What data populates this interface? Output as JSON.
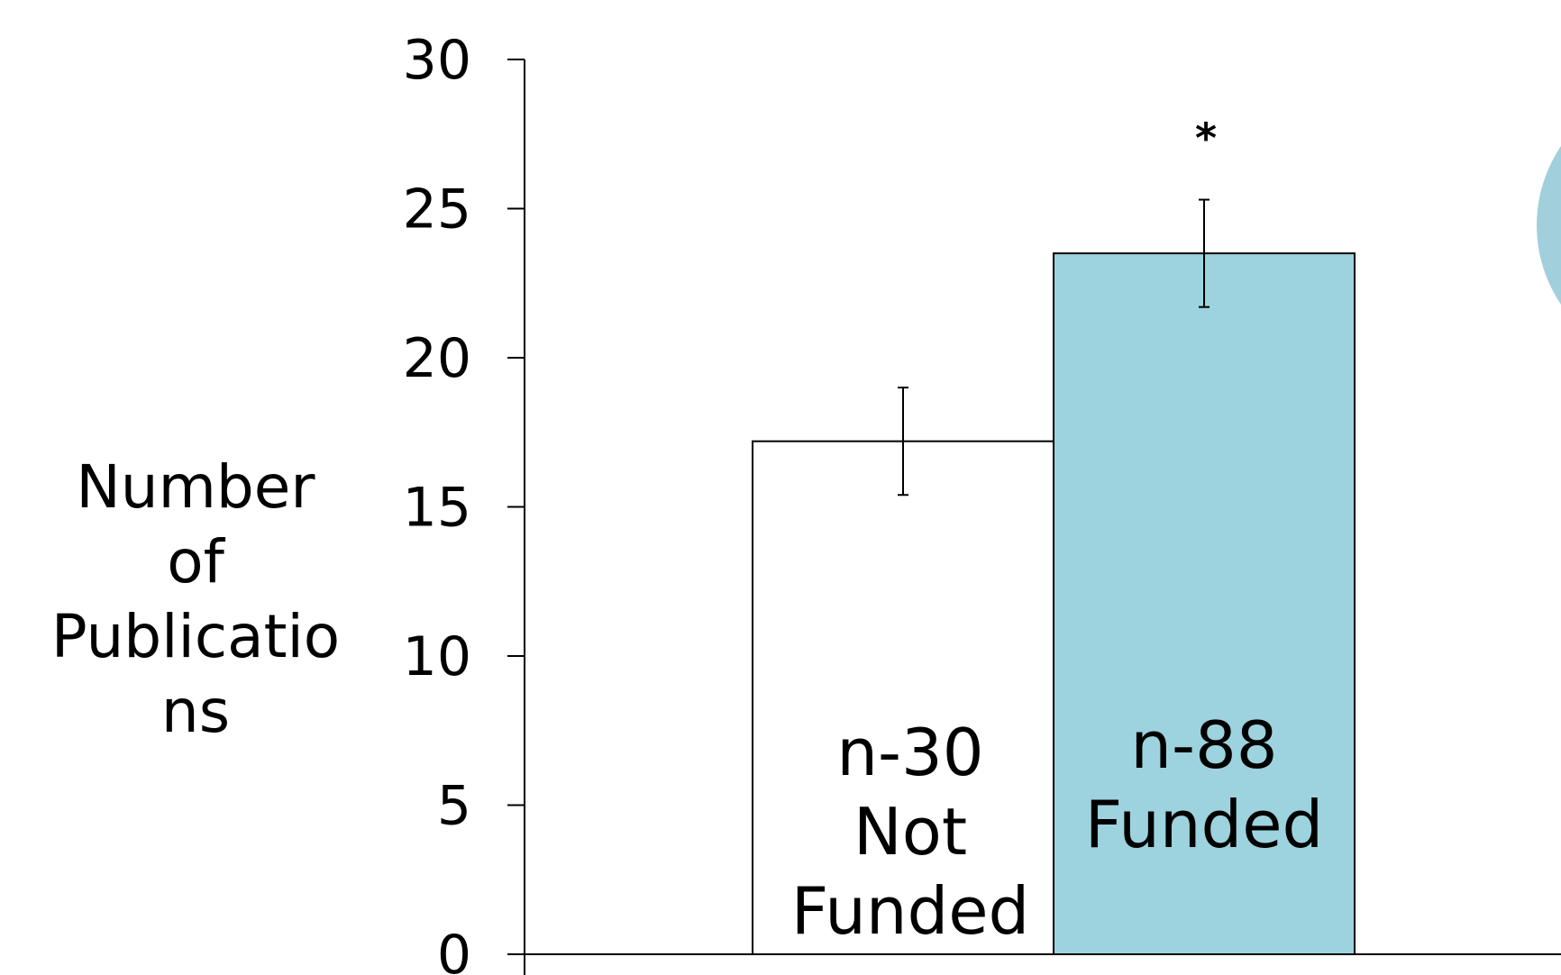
{
  "chart_data": {
    "type": "bar",
    "ylabel": "Number of Publications",
    "ylabel_lines": [
      "Number",
      "of",
      "Publicatio",
      "ns"
    ],
    "ylim": [
      0,
      30
    ],
    "yticks": [
      0,
      5,
      10,
      15,
      20,
      25,
      30
    ],
    "grid": false,
    "categories": [
      "n-30 Not Funded",
      "n-88 Funded"
    ],
    "values": [
      17.2,
      23.5
    ],
    "error_low": [
      15.4,
      21.7
    ],
    "error_high": [
      19.0,
      25.3
    ],
    "bar_labels": [
      [
        "n-30",
        "Not",
        "Funded"
      ],
      [
        "n-88",
        "Funded"
      ]
    ],
    "colors": [
      "#ffffff",
      "#9dd3de"
    ],
    "significance": [
      null,
      "*"
    ]
  },
  "decoration": {
    "circle_color": "#a2cfdc"
  }
}
